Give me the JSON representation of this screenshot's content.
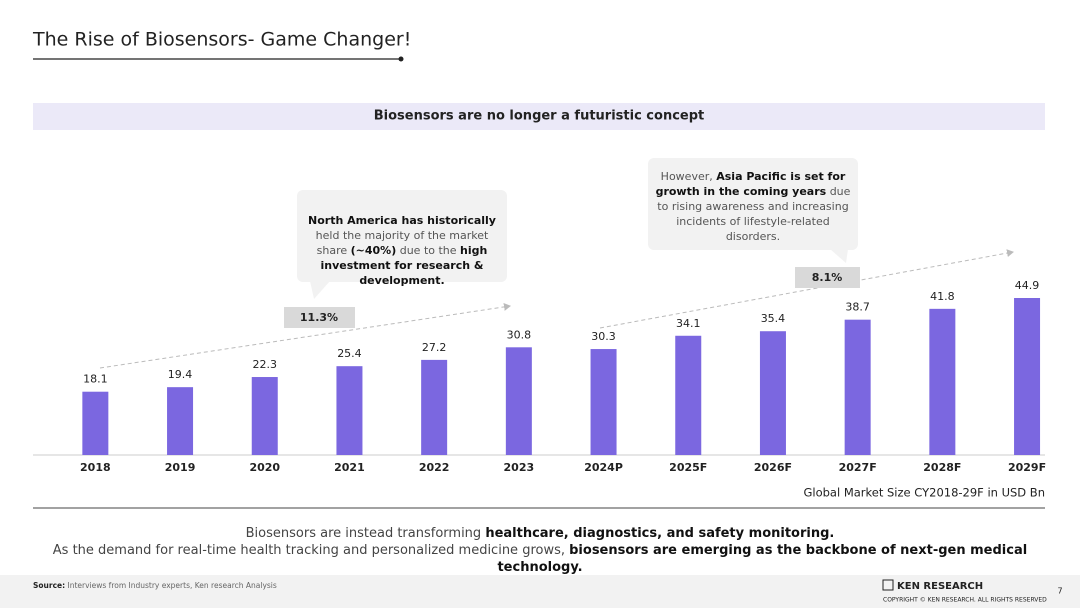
{
  "header": {
    "title": "The Rise of Biosensors- Game Changer!",
    "banner": "Biosensors are no longer a futuristic concept"
  },
  "chart_data": {
    "type": "bar",
    "categories": [
      "2018",
      "2019",
      "2020",
      "2021",
      "2022",
      "2023",
      "2024P",
      "2025F",
      "2026F",
      "2027F",
      "2028F",
      "2029F"
    ],
    "values": [
      18.1,
      19.4,
      22.3,
      25.4,
      27.2,
      30.8,
      30.3,
      34.1,
      35.4,
      38.7,
      41.8,
      44.9
    ],
    "color": "#7b67e0",
    "caption": "Global Market Size CY2018-29F in USD Bn",
    "growth_labels": [
      "11.3%",
      "8.1%"
    ],
    "callouts": [
      [
        {
          "text": "North America has historically",
          "bold": true
        },
        {
          "text": " held the majority of the market share ",
          "bold": false
        },
        {
          "text": "(~40%)",
          "bold": true
        },
        {
          "text": " due to the ",
          "bold": false
        },
        {
          "text": "high investment for research & development.",
          "bold": true
        }
      ],
      [
        {
          "text": "However, ",
          "bold": false
        },
        {
          "text": "Asia Pacific is set for growth in the coming years",
          "bold": true
        },
        {
          "text": " due to rising awareness and increasing incidents of lifestyle-related disorders.",
          "bold": false
        }
      ]
    ]
  },
  "summary": [
    [
      {
        "text": "Biosensors are instead transforming ",
        "bold": false
      },
      {
        "text": "healthcare, diagnostics, and safety monitoring.",
        "bold": true
      }
    ],
    [
      {
        "text": "As the demand for real-time health tracking and personalized medicine grows, ",
        "bold": false
      },
      {
        "text": "biosensors are emerging as the backbone of next-gen medical technology.",
        "bold": true
      }
    ]
  ],
  "footer": {
    "source_label": "Source:",
    "source": "Interviews from Industry experts, Ken research Analysis",
    "logo": "KEN RESEARCH",
    "copyright": "COPYRIGHT © KEN RESEARCH. ALL RIGHTS RESERVED",
    "page": "7"
  }
}
